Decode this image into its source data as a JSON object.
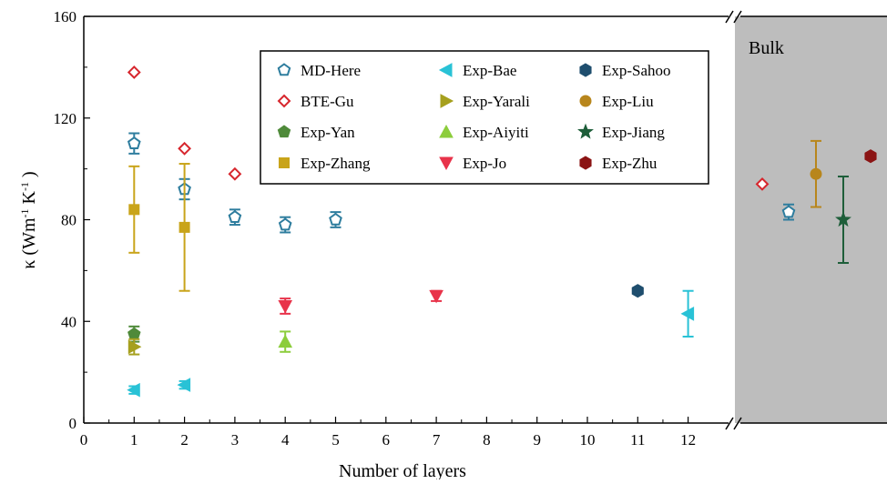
{
  "chart_data": {
    "type": "scatter",
    "xlabel": "Number of layers",
    "ylabel": "κ (Wm",
    "ylabel_sup1": "-1",
    "ylabel_mid": " K",
    "ylabel_sup2": "-1",
    "ylabel_end": " )",
    "xlim": [
      0,
      13
    ],
    "ylim": [
      0,
      160
    ],
    "x_ticks": [
      0,
      1,
      2,
      3,
      4,
      5,
      6,
      7,
      8,
      9,
      10,
      11,
      12
    ],
    "y_ticks": [
      0,
      40,
      80,
      120,
      160
    ],
    "bulk_label": "Bulk",
    "grid": false,
    "legend_placement": "top-center",
    "series": [
      {
        "name": "MD-Here",
        "marker": "pentagon-open",
        "color": "#2e7d9e",
        "x": [
          1,
          2,
          3,
          4,
          5
        ],
        "y": [
          110,
          92,
          81,
          78,
          80
        ],
        "err": [
          4,
          4,
          3,
          3,
          3
        ],
        "bulk": {
          "y": 83,
          "err": 3
        }
      },
      {
        "name": "BTE-Gu",
        "marker": "diamond-open",
        "color": "#d7262d",
        "x": [
          1,
          2,
          3
        ],
        "y": [
          138,
          108,
          98
        ],
        "bulk": {
          "y": 94
        }
      },
      {
        "name": "Exp-Yan",
        "marker": "pentagon",
        "color": "#4f8a3a",
        "x": [
          1
        ],
        "y": [
          35
        ],
        "err": [
          3
        ]
      },
      {
        "name": "Exp-Zhang",
        "marker": "square",
        "color": "#c9a41a",
        "x": [
          1,
          2
        ],
        "y": [
          84,
          77
        ],
        "err": [
          17,
          25
        ]
      },
      {
        "name": "Exp-Bae",
        "marker": "triangle-left",
        "color": "#29c2d6",
        "x": [
          1,
          2,
          12
        ],
        "y": [
          13,
          15,
          43
        ],
        "err": [
          1.5,
          1.5,
          9
        ]
      },
      {
        "name": "Exp-Yarali",
        "marker": "triangle-right",
        "color": "#a6a01e",
        "x": [
          1
        ],
        "y": [
          30
        ],
        "err": [
          3
        ]
      },
      {
        "name": "Exp-Aiyiti",
        "marker": "triangle-up",
        "color": "#8ccd3c",
        "x": [
          4
        ],
        "y": [
          32
        ],
        "err": [
          4
        ]
      },
      {
        "name": "Exp-Jo",
        "marker": "triangle-down",
        "color": "#e8334a",
        "x": [
          4,
          7
        ],
        "y": [
          46,
          50
        ],
        "err": [
          3,
          2
        ]
      },
      {
        "name": "Exp-Sahoo",
        "marker": "hexagon",
        "color": "#1f4e6e",
        "x": [
          11
        ],
        "y": [
          52
        ]
      },
      {
        "name": "Exp-Liu",
        "marker": "circle",
        "color": "#b8861c",
        "x": [],
        "y": [],
        "bulk": {
          "y": 98,
          "err": 13
        }
      },
      {
        "name": "Exp-Jiang",
        "marker": "star",
        "color": "#1e5e3a",
        "x": [],
        "y": [],
        "bulk": {
          "y": 80,
          "err": 17
        }
      },
      {
        "name": "Exp-Zhu",
        "marker": "hexagon",
        "color": "#8b1414",
        "x": [],
        "y": [],
        "bulk": {
          "y": 105
        }
      }
    ]
  }
}
